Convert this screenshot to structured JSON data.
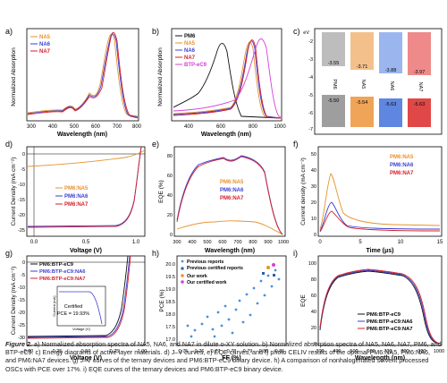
{
  "panels": {
    "a": {
      "letter": "a)",
      "ylabel": "Normalized Absorption",
      "xlabel": "Wavelength (nm)",
      "xticks": [
        "300",
        "400",
        "500",
        "600",
        "700",
        "800"
      ],
      "legend": [
        "NA5",
        "NA6",
        "NA7"
      ]
    },
    "b": {
      "letter": "b)",
      "ylabel": "Normalized Absorption",
      "xlabel": "Wavelength (nm)",
      "xticks": [
        "400",
        "600",
        "800",
        "1000"
      ],
      "legend": [
        "PM6",
        "NA5",
        "NA6",
        "NA7",
        "BTP-eC9"
      ]
    },
    "c": {
      "letter": "c)",
      "yunit": "eV",
      "yticks": [
        "-2",
        "-3",
        "-4",
        "-5",
        "-6",
        "-7"
      ],
      "materials": [
        "PM6",
        "NA5",
        "NA6",
        "NA7"
      ],
      "lumo": [
        "-3.55",
        "-3.71",
        "-3.88",
        "-3.97"
      ],
      "homo": [
        "-5.50",
        "-5.54",
        "-5.63",
        "-5.63"
      ]
    },
    "d": {
      "letter": "d)",
      "ylabel": "Current Density (mA cm⁻²)",
      "xlabel": "Voltage (V)",
      "xticks": [
        "0.0",
        "0.5",
        "1.0"
      ],
      "yticks": [
        "0",
        "-5",
        "-10",
        "-15",
        "-20",
        "-25"
      ],
      "legend": [
        "PM6:NA5",
        "PM6:NA6",
        "PM6:NA7"
      ]
    },
    "e": {
      "letter": "e)",
      "ylabel": "EQE (%)",
      "xlabel": "Wavelength (nm)",
      "xticks": [
        "300",
        "400",
        "500",
        "600",
        "700",
        "800",
        "900",
        "1000"
      ],
      "yticks": [
        "0",
        "20",
        "40",
        "60",
        "80"
      ],
      "legend": [
        "PM6:NA5",
        "PM6:NA6",
        "PM6:NA7"
      ]
    },
    "f": {
      "letter": "f)",
      "ylabel": "Current density (mA cm⁻²)",
      "xlabel": "Time (μs)",
      "xticks": [
        "0",
        "5",
        "10",
        "15"
      ],
      "yticks": [
        "0",
        "10",
        "20",
        "30",
        "40",
        "50"
      ],
      "legend": [
        "PM6:NA5",
        "PM6:NA6",
        "PM6:NA7"
      ]
    },
    "g": {
      "letter": "g)",
      "ylabel": "Current Density (mA cm⁻²)",
      "xlabel": "Voltage (V)",
      "xticks": [
        "0.00",
        "0.25",
        "0.50",
        "0.75",
        "1.00"
      ],
      "yticks": [
        "0",
        "-5",
        "-10",
        "-15",
        "-20",
        "-25",
        "-30"
      ],
      "legend": [
        "PM6:BTP-eC9",
        "PM6:BTP-eC9:NA6",
        "PM6:BTP-eC9:NA7"
      ],
      "inset_title": "Certified",
      "inset_pce": "PCE = 19.93%",
      "inset_xlabel": "Voltage (V)",
      "inset_ylabel": "Current (mA)"
    },
    "h": {
      "letter": "h)",
      "ylabel": "PCE (%)",
      "xlabel": "FF (%)",
      "xticks": [
        "0.75",
        "0.76",
        "0.77",
        "0.78",
        "0.79",
        "0.80",
        "0.81"
      ],
      "yticks": [
        "17.0",
        "17.5",
        "18.0",
        "18.5",
        "19.0",
        "19.5",
        "20.0"
      ],
      "legend": [
        "Previous reports",
        "Previous certified reports",
        "Our work",
        "Our certified work"
      ]
    },
    "i": {
      "letter": "i)",
      "ylabel": "EQE",
      "xlabel": "Wavelength (nm)",
      "xticks": [
        "300",
        "400",
        "500",
        "600",
        "700",
        "800",
        "900",
        "1000"
      ],
      "yticks": [
        "0",
        "20",
        "40",
        "60",
        "80",
        "100"
      ],
      "legend": [
        "PM6:BTP-eC9",
        "PM6:BTP-eC9:NA6",
        "PM6:BTP-eC9:NA7"
      ]
    }
  },
  "colors": {
    "NA5": "#e8922e",
    "NA6": "#3a3fd4",
    "NA7": "#d6202a",
    "PM6": "#111111",
    "BTP": "#d640d6",
    "prev": "#4a90d9",
    "cert": "#2a5fa8"
  },
  "caption": {
    "label": "Figure 2.",
    "text": " a) Normalized absorption spectra of NA5, NA6, and NA7 in dilute o-XY solution. b) Normalized absorption spectra of NA5, NA6, NA7, PM6, and BTP-eC9. c) Energy diagrams of active layer materials. d) J–V curves, e) EQE curves, and f) photo CELIV results of the optimal PM6:NA5, PM6:NA6, and PM6:NA7 devices. g) J–V curves of the ternary devices and PM6:BTP-eC9 binary device. h) A comparison of nonhalogenated solvent processed OSCs with PCE over 17%. i) EQE curves of the ternary devices and PM6:BTP-eC9 binary device."
  }
}
